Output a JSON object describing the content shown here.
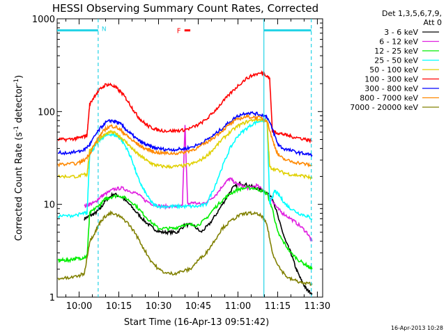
{
  "chart_data": {
    "type": "line",
    "title": "HESSI Observing Summary Count Rates, Corrected",
    "xlabel": "Start Time (16-Apr-13 09:51:42)",
    "ylabel": "Corrected Count Rate (s",
    "ylabel_exp1": "-1",
    "ylabel_mid": " detector",
    "ylabel_exp2": "-1",
    "ylabel_end": ")",
    "y_scale": "log",
    "ylim": [
      1,
      1000
    ],
    "y_ticks": [
      {
        "v": 1,
        "label": "1"
      },
      {
        "v": 10,
        "label": "10"
      },
      {
        "v": 100,
        "label": "100"
      },
      {
        "v": 1000,
        "label": "1000"
      }
    ],
    "xlim": [
      51.7,
      152.0
    ],
    "x_ticks": [
      {
        "v": 60,
        "label": "10:00"
      },
      {
        "v": 75,
        "label": "10:15"
      },
      {
        "v": 90,
        "label": "10:30"
      },
      {
        "v": 105,
        "label": "10:45"
      },
      {
        "v": 120,
        "label": "11:00"
      },
      {
        "v": 135,
        "label": "11:15"
      },
      {
        "v": 150,
        "label": "11:30"
      }
    ],
    "legend_header": [
      "Det 1,3,5,6,7,9,",
      "Att 0"
    ],
    "legend_placement": "right",
    "timestamp": "16-Apr-2013 10:28",
    "flag_labels": {
      "night": "N",
      "flare": "F"
    },
    "flag_bars": [
      {
        "name": "night",
        "color": "#22d3e6",
        "y": 750,
        "segments": [
          [
            51.7,
            67.2
          ],
          [
            129.8,
            147.7
          ]
        ]
      },
      {
        "name": "flare",
        "color": "#ff0000",
        "y": 750,
        "segments": [
          [
            99.8,
            102.0
          ]
        ]
      }
    ],
    "event_markers": [
      {
        "x": 67.2,
        "style": "dashed",
        "color": "#22d3e6"
      },
      {
        "x": 129.8,
        "style": "solid",
        "color": "#22d3e6"
      },
      {
        "x": 147.7,
        "style": "dashed",
        "color": "#22d3e6"
      }
    ],
    "series": [
      {
        "name": "3 - 6 keV",
        "color": "#000000",
        "x": [
          62,
          64,
          66,
          68,
          70,
          73,
          76,
          79,
          82,
          85,
          88,
          91,
          94,
          97,
          100,
          103,
          106,
          109,
          112,
          115,
          118,
          121,
          124,
          127,
          130,
          133,
          136,
          138,
          140,
          142,
          144,
          146,
          148
        ],
        "y": [
          7,
          7.5,
          8,
          9,
          11,
          13,
          12,
          10,
          8,
          6.5,
          5.5,
          5,
          5,
          5,
          6,
          6,
          5,
          6,
          8,
          11,
          15,
          17,
          16,
          15,
          14,
          12,
          6,
          4,
          3,
          2,
          1.5,
          1.2,
          1.1
        ]
      },
      {
        "name": "6 - 12 keV",
        "color": "#e020e0",
        "x": [
          62,
          64,
          66,
          68,
          70,
          73,
          76,
          79,
          82,
          85,
          88,
          91,
          94,
          97,
          99,
          100,
          101,
          103,
          106,
          109,
          112,
          115,
          117,
          119,
          121,
          124,
          127,
          130,
          133,
          135,
          137,
          140,
          143,
          146,
          148
        ],
        "y": [
          9.5,
          10,
          10.5,
          12,
          13,
          14.5,
          15,
          14,
          13,
          11,
          10,
          9.5,
          9.5,
          9.5,
          9.5,
          70,
          10,
          10.5,
          10,
          11,
          13,
          17,
          19,
          17,
          16,
          15,
          16,
          14,
          11,
          9,
          8,
          7,
          6,
          5,
          4
        ]
      },
      {
        "name": "12 - 25 keV",
        "color": "#00ee00",
        "x": [
          52,
          54,
          56,
          58,
          60,
          62,
          63,
          64,
          66,
          68,
          70,
          72,
          75,
          78,
          81,
          84,
          87,
          90,
          93,
          96,
          99,
          102,
          105,
          108,
          111,
          114,
          117,
          120,
          123,
          126,
          129,
          131,
          133,
          135,
          137,
          140,
          143,
          146,
          148
        ],
        "y": [
          2.5,
          2.5,
          2.5,
          2.6,
          2.6,
          2.7,
          2.7,
          8,
          9,
          10,
          11.5,
          12,
          12.5,
          11.5,
          10,
          8,
          6.5,
          5.5,
          5.5,
          5.5,
          6,
          6,
          6,
          7,
          9,
          11,
          13,
          14.5,
          15,
          15,
          14,
          13,
          9,
          5,
          4,
          3,
          2.5,
          2.2,
          2
        ]
      },
      {
        "name": "25 - 50 keV",
        "color": "#00ffff",
        "x": [
          52,
          56,
          60,
          62,
          63,
          64,
          66,
          68,
          70,
          72,
          74,
          76,
          78,
          80,
          82,
          84,
          86,
          88,
          90,
          93,
          96,
          99,
          102,
          105,
          108,
          111,
          114,
          117,
          120,
          123,
          126,
          129,
          131,
          132,
          133,
          134,
          136,
          138,
          140,
          143,
          146,
          148
        ],
        "y": [
          7.5,
          7.5,
          7.8,
          8,
          8,
          35,
          42,
          50,
          55,
          57,
          55,
          50,
          40,
          30,
          20,
          15,
          12,
          10,
          9.5,
          9.5,
          9.5,
          9.5,
          9.5,
          9.5,
          10,
          15,
          25,
          40,
          55,
          65,
          75,
          80,
          80,
          10,
          12,
          14,
          12,
          10,
          9,
          8,
          7.5,
          7
        ]
      },
      {
        "name": "50 - 100 keV",
        "color": "#e0d000",
        "x": [
          52,
          56,
          60,
          62,
          63,
          64,
          66,
          68,
          70,
          72,
          74,
          76,
          78,
          80,
          82,
          84,
          86,
          88,
          90,
          93,
          96,
          99,
          102,
          105,
          108,
          111,
          114,
          117,
          120,
          123,
          126,
          129,
          131,
          132,
          134,
          137,
          140,
          143,
          146,
          148
        ],
        "y": [
          20,
          20,
          20,
          21,
          21,
          38,
          45,
          52,
          57,
          60,
          58,
          52,
          46,
          40,
          35,
          32,
          29,
          27,
          26,
          25.5,
          25.5,
          26,
          27,
          29,
          33,
          40,
          50,
          60,
          70,
          77,
          82,
          82,
          78,
          25,
          24,
          22,
          21,
          20.5,
          20,
          19
        ]
      },
      {
        "name": "100 - 300 keV",
        "color": "#ff0000",
        "x": [
          52,
          55,
          58,
          60,
          62,
          63,
          64,
          66,
          68,
          70,
          72,
          74,
          76,
          78,
          80,
          82,
          84,
          86,
          88,
          90,
          93,
          96,
          99,
          102,
          105,
          108,
          111,
          114,
          117,
          120,
          123,
          126,
          129,
          131,
          132,
          133,
          134,
          136,
          138,
          140,
          143,
          146,
          148
        ],
        "y": [
          50,
          50,
          51,
          52,
          54,
          56,
          120,
          150,
          175,
          195,
          195,
          180,
          160,
          135,
          110,
          90,
          78,
          70,
          66,
          63,
          62,
          62,
          63,
          66,
          72,
          82,
          100,
          125,
          155,
          190,
          225,
          250,
          260,
          245,
          225,
          62,
          60,
          58,
          56,
          54,
          52,
          50,
          48
        ]
      },
      {
        "name": "300 - 800 keV",
        "color": "#0000ff",
        "x": [
          52,
          56,
          60,
          62,
          64,
          66,
          68,
          70,
          72,
          74,
          76,
          78,
          80,
          82,
          84,
          86,
          88,
          90,
          93,
          96,
          99,
          102,
          105,
          108,
          111,
          114,
          117,
          120,
          123,
          126,
          129,
          131,
          133,
          135,
          137,
          140,
          143,
          146,
          148
        ],
        "y": [
          36,
          36,
          37,
          39,
          44,
          55,
          66,
          76,
          80,
          78,
          72,
          63,
          56,
          50,
          46,
          43,
          41,
          40,
          39,
          39,
          39.5,
          41,
          44,
          49,
          56,
          66,
          78,
          90,
          97,
          96,
          92,
          88,
          65,
          45,
          40,
          38,
          36,
          35,
          34
        ]
      },
      {
        "name": "800 - 7000 keV",
        "color": "#ff8800",
        "x": [
          52,
          56,
          60,
          62,
          64,
          66,
          68,
          70,
          72,
          74,
          76,
          78,
          80,
          82,
          84,
          86,
          88,
          90,
          93,
          96,
          99,
          102,
          105,
          108,
          111,
          114,
          117,
          120,
          123,
          126,
          129,
          131,
          133,
          135,
          137,
          140,
          143,
          146,
          148
        ],
        "y": [
          27,
          27,
          28,
          30,
          35,
          45,
          56,
          65,
          70,
          68,
          62,
          55,
          49,
          45,
          41,
          39,
          37,
          36,
          35.5,
          35.5,
          36,
          38,
          41,
          46,
          53,
          62,
          73,
          83,
          88,
          87,
          85,
          80,
          50,
          35,
          31,
          29,
          28,
          27,
          26
        ]
      },
      {
        "name": "7000 - 20000 keV",
        "color": "#808000",
        "x": [
          52,
          56,
          60,
          62,
          64,
          66,
          68,
          70,
          72,
          75,
          78,
          81,
          84,
          87,
          90,
          93,
          96,
          99,
          102,
          105,
          108,
          111,
          114,
          117,
          120,
          123,
          126,
          129,
          131,
          133,
          136,
          139,
          142,
          145,
          148
        ],
        "y": [
          1.6,
          1.6,
          1.7,
          1.8,
          4,
          5,
          6.5,
          7.5,
          8,
          7.5,
          6.5,
          5,
          3.5,
          2.5,
          2,
          1.8,
          1.8,
          1.9,
          2,
          2.5,
          3,
          4,
          5.5,
          6.5,
          7.5,
          8,
          8,
          7.5,
          6,
          3,
          2,
          1.6,
          1.5,
          1.4,
          1.4
        ]
      }
    ]
  }
}
